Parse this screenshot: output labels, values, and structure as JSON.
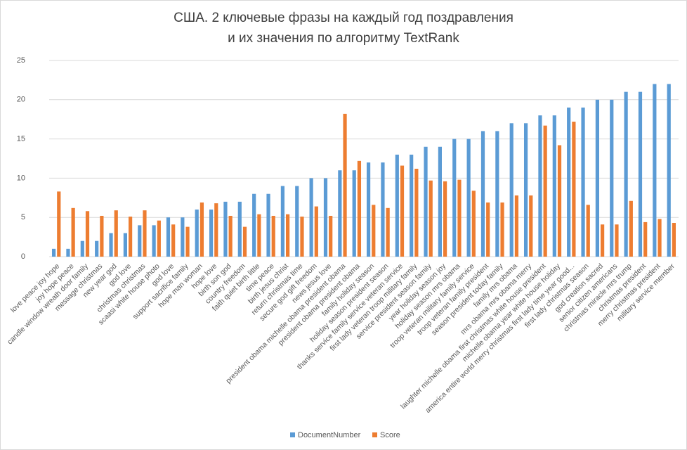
{
  "chart_data": {
    "type": "bar",
    "title": [
      "США. 2 ключевые фразы на каждый год поздравления",
      "и их значения по алгоритму TextRank"
    ],
    "categories": [
      "love peace joy hope",
      "joy hope peace",
      "candle window wreath door family",
      "message christmas",
      "new year god",
      "god love",
      "christmas christmas",
      "scaasi white house photo",
      "god love",
      "support sacrifice family",
      "hope man woman",
      "hope love",
      "birth son god",
      "country freedom",
      "faith quiet birth little",
      "time peace",
      "birth jesus christ",
      "return christmas time",
      "secure god gift freedom",
      "news jesus love",
      "president obama michelle obama president obama",
      "president obama president obama",
      "family holiday season",
      "holiday season president season",
      "thanks service family service veteran service",
      "first lady veteran troop military family",
      "service president season family",
      "year holiday season joy",
      "holiday season mrs obama",
      "troop veteran military family service",
      "troop veteran family president",
      "season president today family",
      "family mrs obama",
      "mrs obama mrs obama merry",
      "laughter michelle obama first christmas white house president",
      "michelle obama year white house holiday",
      "america entire world merry christmas first lady time year good...",
      "first lady christmas season",
      "god creation sacred",
      "senior citizen americans",
      "christmas miracle mrs trump",
      "christmas president",
      "merry christmas president",
      "military service member"
    ],
    "series": [
      {
        "name": "DocumentNumber",
        "color": "#5b9bd5",
        "values": [
          1,
          1,
          2,
          2,
          3,
          3,
          4,
          4,
          5,
          5,
          6,
          6,
          7,
          7,
          8,
          8,
          9,
          9,
          10,
          10,
          11,
          11,
          12,
          12,
          13,
          13,
          14,
          14,
          15,
          15,
          16,
          16,
          17,
          17,
          18,
          18,
          19,
          19,
          20,
          20,
          21,
          21,
          22,
          22
        ]
      },
      {
        "name": "Score",
        "color": "#ed7d31",
        "values": [
          8.3,
          6.2,
          5.8,
          5.2,
          5.9,
          5.1,
          5.9,
          4.6,
          4.1,
          3.8,
          6.9,
          6.8,
          5.2,
          3.8,
          5.4,
          5.2,
          5.4,
          5.1,
          6.4,
          5.2,
          18.2,
          12.2,
          6.6,
          6.2,
          11.6,
          11.2,
          9.7,
          9.6,
          9.8,
          8.4,
          6.9,
          6.9,
          7.8,
          7.8,
          16.7,
          14.2,
          17.2,
          6.6,
          4.1,
          4.1,
          7.1,
          4.4,
          4.8,
          4.3
        ]
      }
    ],
    "ylim": [
      0,
      25
    ],
    "yticks": [
      0,
      5,
      10,
      15,
      20,
      25
    ],
    "grid": true,
    "legend": "bottom"
  }
}
